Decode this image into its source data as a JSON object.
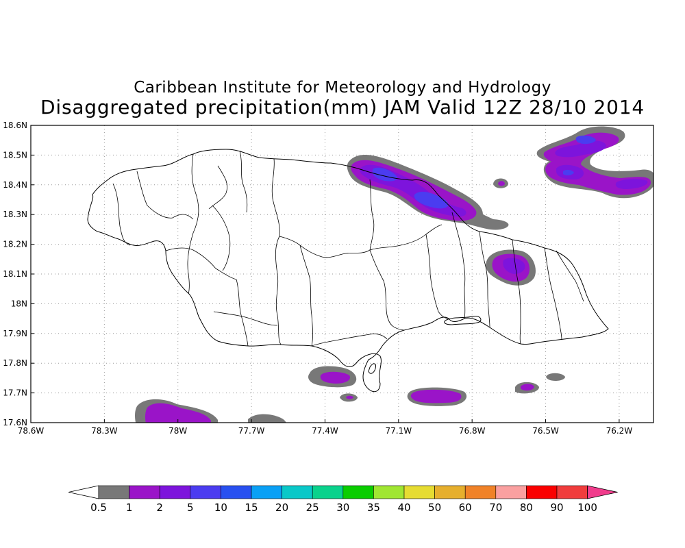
{
  "title": {
    "line1": "Caribbean Institute for Meteorology and Hydrology",
    "line2": "Disaggregated precipitation(mm) JAM Valid 12Z 28/10 2014"
  },
  "axes": {
    "lon_labels": [
      "78.6W",
      "78.3W",
      "78W",
      "77.7W",
      "77.4W",
      "77.1W",
      "76.8W",
      "76.5W",
      "76.2W"
    ],
    "lon_values": [
      -78.6,
      -78.3,
      -78.0,
      -77.7,
      -77.4,
      -77.1,
      -76.8,
      -76.5,
      -76.2
    ],
    "lat_labels": [
      "18.6N",
      "18.5N",
      "18.4N",
      "18.3N",
      "18.2N",
      "18.1N",
      "18N",
      "17.9N",
      "17.8N",
      "17.7N",
      "17.6N"
    ],
    "lat_values": [
      18.6,
      18.5,
      18.4,
      18.3,
      18.2,
      18.1,
      18.0,
      17.9,
      17.8,
      17.7,
      17.6
    ],
    "lon_range": [
      -78.6,
      -76.06
    ],
    "lat_range": [
      17.6,
      18.6
    ],
    "grid": "dotted"
  },
  "colorbar": {
    "labels": [
      "0.5",
      "1",
      "2",
      "5",
      "10",
      "15",
      "20",
      "25",
      "30",
      "35",
      "40",
      "50",
      "60",
      "70",
      "80",
      "90",
      "100"
    ],
    "colors": [
      "#787878",
      "#9a14c8",
      "#7d14dc",
      "#4b3cf0",
      "#2850f0",
      "#0aa0f5",
      "#0ac8c8",
      "#0ad28c",
      "#0acd00",
      "#a0e632",
      "#e6dc32",
      "#e6af2d",
      "#f08228",
      "#faa0a0",
      "#fa0000",
      "#f03c3c"
    ],
    "under_color": "#ffffff",
    "over_color": "#f03c8c"
  },
  "colors": {
    "gray": "#787878",
    "purple": "#9a14c8",
    "violet": "#7d14dc",
    "blue": "#4b3cf0"
  }
}
